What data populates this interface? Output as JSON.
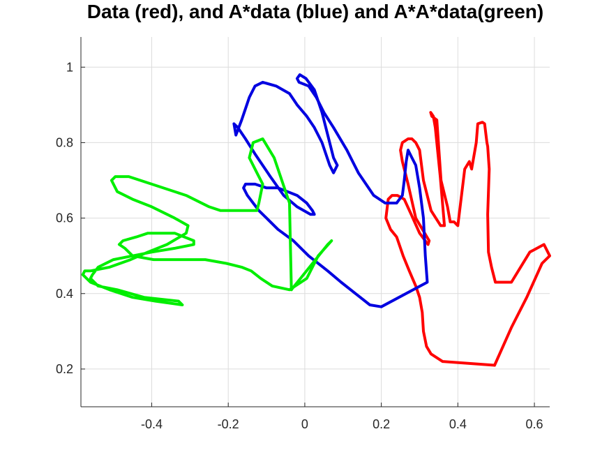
{
  "chart_data": {
    "type": "line",
    "title": "Data (red), and A*data (blue) and A*A*data(green)",
    "xlabel": "",
    "ylabel": "",
    "xlim": [
      -0.585,
      0.64
    ],
    "ylim": [
      0.1,
      1.08
    ],
    "grid": true,
    "x_ticks": [
      -0.4,
      -0.2,
      0,
      0.2,
      0.4,
      0.6
    ],
    "x_tick_labels": [
      "-0.4",
      "-0.2",
      "0",
      "0.2",
      "0.4",
      "0.6"
    ],
    "y_ticks": [
      0.2,
      0.4,
      0.6,
      0.8,
      1.0
    ],
    "y_tick_labels": [
      "0.2",
      "0.4",
      "0.6",
      "0.8",
      "1"
    ],
    "series": [
      {
        "color": "#ff0000",
        "x": [
          0.496,
          0.54,
          0.58,
          0.62,
          0.64,
          0.625,
          0.588,
          0.54,
          0.498,
          0.488,
          0.48,
          0.478,
          0.482,
          0.478,
          0.476,
          0.47,
          0.464,
          0.452,
          0.448,
          0.436,
          0.43,
          0.418,
          0.4,
          0.39,
          0.38,
          0.373,
          0.356,
          0.345,
          0.332,
          0.329,
          0.336,
          0.341,
          0.354,
          0.365,
          0.355,
          0.33,
          0.31,
          0.3,
          0.29,
          0.28,
          0.27,
          0.255,
          0.25,
          0.255,
          0.27,
          0.29,
          0.325,
          0.322,
          0.3,
          0.278,
          0.26,
          0.242,
          0.228,
          0.218,
          0.212,
          0.224,
          0.24,
          0.257,
          0.273,
          0.29,
          0.3,
          0.307,
          0.31,
          0.318,
          0.33,
          0.36,
          0.496
        ],
        "y": [
          0.21,
          0.31,
          0.39,
          0.48,
          0.5,
          0.53,
          0.51,
          0.43,
          0.43,
          0.47,
          0.51,
          0.61,
          0.73,
          0.79,
          0.8,
          0.85,
          0.854,
          0.85,
          0.8,
          0.73,
          0.75,
          0.73,
          0.58,
          0.59,
          0.59,
          0.63,
          0.7,
          0.86,
          0.87,
          0.88,
          0.87,
          0.84,
          0.71,
          0.58,
          0.58,
          0.62,
          0.7,
          0.78,
          0.8,
          0.81,
          0.81,
          0.8,
          0.78,
          0.75,
          0.69,
          0.6,
          0.54,
          0.53,
          0.56,
          0.61,
          0.65,
          0.66,
          0.66,
          0.65,
          0.6,
          0.57,
          0.55,
          0.5,
          0.46,
          0.42,
          0.39,
          0.35,
          0.3,
          0.26,
          0.24,
          0.22,
          0.21
        ]
      },
      {
        "color": "#0000e0",
        "x": [
          0.2,
          0.32,
          0.315,
          0.31,
          0.3,
          0.29,
          0.28,
          0.27,
          0.265,
          0.26,
          0.255,
          0.24,
          0.21,
          0.18,
          0.14,
          0.11,
          0.075,
          0.05,
          0.03,
          0.01,
          -0.015,
          -0.02,
          -0.013,
          0.003,
          0.025,
          0.045,
          0.075,
          0.085,
          0.075,
          0.065,
          0.045,
          0.025,
          0.005,
          -0.02,
          -0.04,
          -0.075,
          -0.11,
          -0.13,
          -0.145,
          -0.155,
          -0.165,
          -0.18,
          -0.185,
          -0.175,
          -0.155,
          -0.13,
          -0.09,
          -0.055,
          -0.02,
          0.015,
          0.025,
          0.02,
          0.005,
          -0.02,
          -0.045,
          -0.07,
          -0.1,
          -0.13,
          -0.155,
          -0.16,
          -0.15,
          -0.135,
          -0.12,
          -0.1,
          -0.07,
          -0.03,
          0.01,
          0.06,
          0.095,
          0.12,
          0.145,
          0.17,
          0.2
        ],
        "y": [
          0.365,
          0.43,
          0.5,
          0.6,
          0.68,
          0.74,
          0.76,
          0.78,
          0.75,
          0.7,
          0.66,
          0.64,
          0.64,
          0.66,
          0.72,
          0.78,
          0.84,
          0.88,
          0.92,
          0.95,
          0.96,
          0.97,
          0.98,
          0.97,
          0.94,
          0.88,
          0.76,
          0.74,
          0.72,
          0.74,
          0.8,
          0.84,
          0.87,
          0.9,
          0.93,
          0.95,
          0.96,
          0.95,
          0.92,
          0.89,
          0.86,
          0.82,
          0.85,
          0.84,
          0.81,
          0.77,
          0.71,
          0.66,
          0.63,
          0.61,
          0.61,
          0.62,
          0.64,
          0.66,
          0.67,
          0.68,
          0.68,
          0.69,
          0.69,
          0.68,
          0.66,
          0.64,
          0.62,
          0.6,
          0.57,
          0.54,
          0.5,
          0.46,
          0.43,
          0.41,
          0.39,
          0.37,
          0.365
        ]
      },
      {
        "color": "#00ee00",
        "x": [
          -0.035,
          0.06,
          0.07,
          0.035,
          0.005,
          -0.04,
          -0.085,
          -0.115,
          -0.14,
          -0.165,
          -0.205,
          -0.26,
          -0.315,
          -0.35,
          -0.395,
          -0.45,
          -0.47,
          -0.485,
          -0.475,
          -0.44,
          -0.41,
          -0.34,
          -0.29,
          -0.29,
          -0.34,
          -0.4,
          -0.45,
          -0.5,
          -0.54,
          -0.555,
          -0.56,
          -0.54,
          -0.49,
          -0.42,
          -0.33,
          -0.32,
          -0.39,
          -0.45,
          -0.51,
          -0.56,
          -0.58,
          -0.575,
          -0.56,
          -0.51,
          -0.455,
          -0.41,
          -0.36,
          -0.31,
          -0.305,
          -0.34,
          -0.4,
          -0.45,
          -0.49,
          -0.505,
          -0.495,
          -0.46,
          -0.4,
          -0.31,
          -0.25,
          -0.22,
          -0.18,
          -0.125,
          -0.12,
          -0.11,
          -0.125,
          -0.145,
          -0.135,
          -0.11,
          -0.08,
          -0.04,
          -0.035
        ],
        "y": [
          0.41,
          0.53,
          0.54,
          0.5,
          0.44,
          0.41,
          0.42,
          0.44,
          0.46,
          0.47,
          0.48,
          0.49,
          0.49,
          0.49,
          0.49,
          0.5,
          0.52,
          0.53,
          0.54,
          0.55,
          0.56,
          0.56,
          0.54,
          0.53,
          0.52,
          0.51,
          0.5,
          0.49,
          0.47,
          0.45,
          0.44,
          0.42,
          0.41,
          0.39,
          0.38,
          0.37,
          0.38,
          0.39,
          0.41,
          0.43,
          0.45,
          0.46,
          0.46,
          0.47,
          0.49,
          0.51,
          0.53,
          0.56,
          0.58,
          0.6,
          0.63,
          0.65,
          0.67,
          0.7,
          0.71,
          0.71,
          0.69,
          0.66,
          0.63,
          0.62,
          0.62,
          0.62,
          0.64,
          0.69,
          0.72,
          0.76,
          0.8,
          0.81,
          0.76,
          0.64,
          0.41
        ]
      }
    ]
  }
}
